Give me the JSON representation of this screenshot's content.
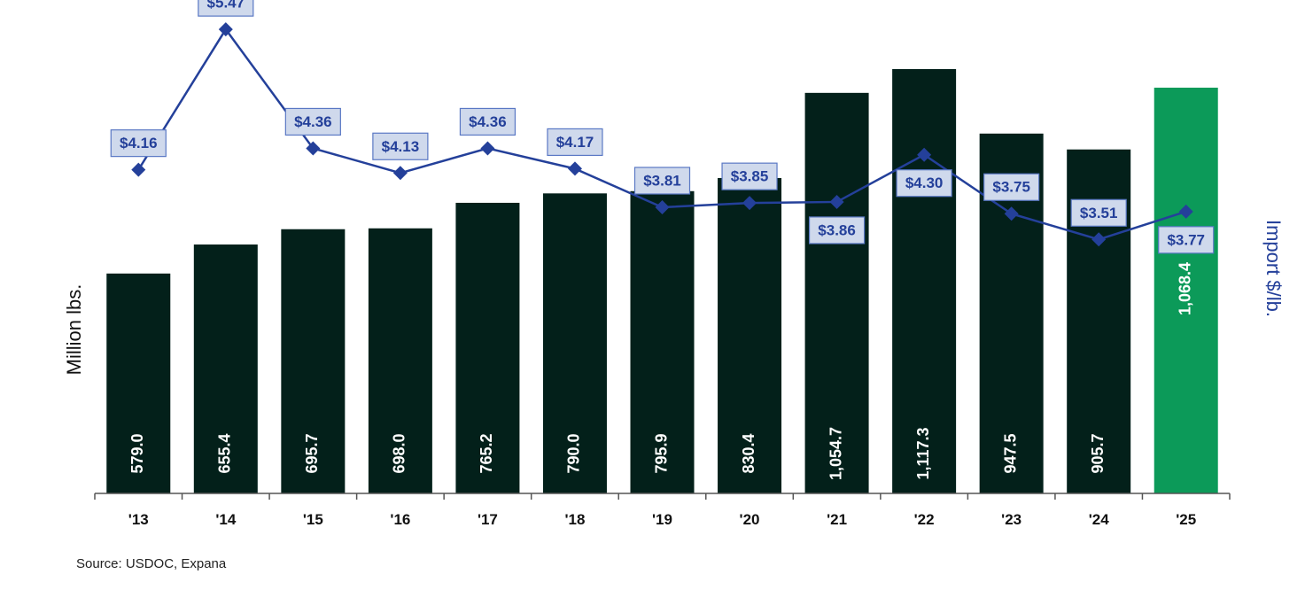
{
  "chart_data": {
    "type": "bar",
    "categories": [
      "'13",
      "'14",
      "'15",
      "'16",
      "'17",
      "'18",
      "'19",
      "'20",
      "'21",
      "'22",
      "'23",
      "'24",
      "'25"
    ],
    "series": [
      {
        "values": [
          579.0,
          655.4,
          695.7,
          698.0,
          765.2,
          790.0,
          795.9,
          830.4,
          1054.7,
          1117.3,
          947.5,
          905.7,
          1068.4
        ],
        "labels": [
          "579.0",
          "655.4",
          "695.7",
          "698.0",
          "765.2",
          "790.0",
          "795.9",
          "830.4",
          "1,054.7",
          "1,117.3",
          "947.5",
          "905.7",
          "1,068.4"
        ],
        "type": "bar",
        "axis": "left",
        "color": "#03201a",
        "highlight_index": 12,
        "highlight_color": "#0c9a59"
      },
      {
        "values": [
          4.16,
          5.47,
          4.36,
          4.13,
          4.36,
          4.17,
          3.81,
          3.85,
          3.86,
          4.3,
          3.75,
          3.51,
          3.77
        ],
        "labels": [
          "$4.16",
          "$5.47",
          "$4.36",
          "$4.13",
          "$4.36",
          "$4.17",
          "$3.81",
          "$3.85",
          "$3.86",
          "$4.30",
          "$3.75",
          "$3.51",
          "$3.77"
        ],
        "type": "line",
        "axis": "right",
        "color": "#24409a",
        "marker": "diamond",
        "label_positions": [
          "above",
          "above",
          "above",
          "above",
          "above",
          "above",
          "above",
          "above",
          "below",
          "below",
          "above",
          "above",
          "below"
        ]
      }
    ],
    "ylabel": "Million lbs.",
    "y2label": "Import $/lb.",
    "ylabel_color": "#111111",
    "y2label_color": "#24409a",
    "label_box_fill": "#cfd9ec",
    "label_box_stroke": "#5a78c4",
    "grid": false,
    "legend": "none"
  },
  "footer": {
    "source": "Source: USDOC, Expana"
  }
}
